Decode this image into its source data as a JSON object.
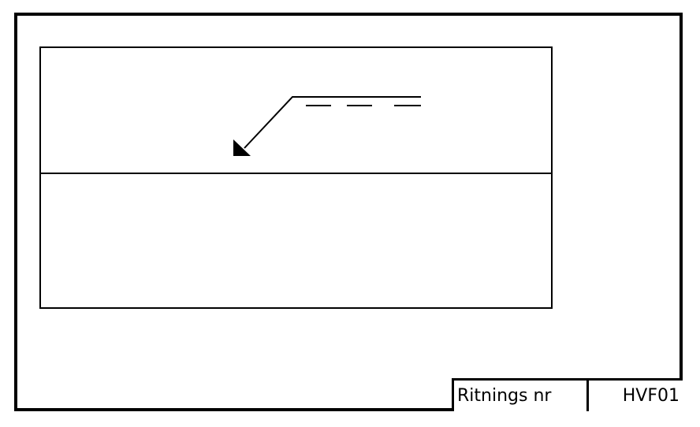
{
  "title_block": {
    "label": "Ritnings nr",
    "value": "HVF01"
  }
}
